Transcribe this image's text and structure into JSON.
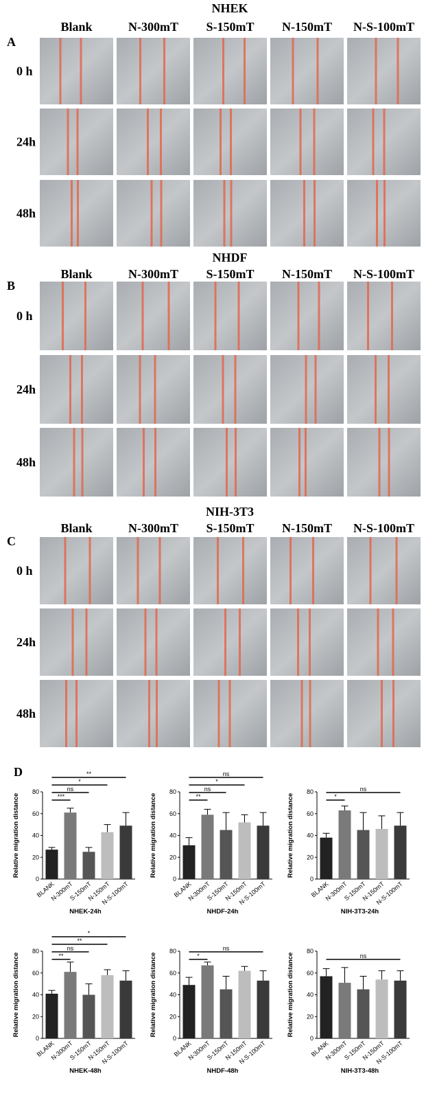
{
  "figure": {
    "letter": "D"
  },
  "panels": [
    {
      "letter": "A",
      "title": "NHEK",
      "columns": [
        "Blank",
        "N-300mT",
        "S-150mT",
        "N-150mT",
        "N-S-100mT"
      ],
      "rows": [
        "0 h",
        "24h",
        "48h"
      ]
    },
    {
      "letter": "B",
      "title": "NHDF",
      "columns": [
        "Blank",
        "N-300mT",
        "S-150mT",
        "N-150mT",
        "N-S-100mT"
      ],
      "rows": [
        "0 h",
        "24h",
        "48h"
      ]
    },
    {
      "letter": "C",
      "title": "NIH-3T3",
      "columns": [
        "Blank",
        "N-300mT",
        "S-150mT",
        "N-150mT",
        "N-S-100mT"
      ],
      "rows": [
        "0 h",
        "24h",
        "48h"
      ]
    }
  ],
  "chart_data": [
    {
      "type": "bar",
      "title": "NHEK-24h",
      "ylabel": "Relative migration distance",
      "categories": [
        "BLANK",
        "N-300mT",
        "S-150mT",
        "N-150mT",
        "N-S-100mT"
      ],
      "values": [
        27,
        61,
        25,
        43,
        49
      ],
      "errors": [
        2,
        4,
        4,
        7,
        12
      ],
      "colors": [
        "#222222",
        "#7a7a7a",
        "#555555",
        "#bdbdbd",
        "#3a3a3a"
      ],
      "ylim": [
        0,
        80
      ],
      "yticks": [
        0,
        20,
        40,
        60,
        80
      ],
      "annotations": [
        {
          "label": "***",
          "from": 0,
          "to": 1
        },
        {
          "label": "ns",
          "from": 0,
          "to": 2
        },
        {
          "label": "*",
          "from": 0,
          "to": 3
        },
        {
          "label": "**",
          "from": 0,
          "to": 4
        }
      ]
    },
    {
      "type": "bar",
      "title": "NHDF-24h",
      "ylabel": "Relative migration distance",
      "categories": [
        "BLANK",
        "N-300mT",
        "S-150mT",
        "N-150mT",
        "N-S-100mT"
      ],
      "values": [
        31,
        59,
        45,
        52,
        49
      ],
      "errors": [
        7,
        5,
        16,
        7,
        12
      ],
      "colors": [
        "#222222",
        "#7a7a7a",
        "#555555",
        "#bdbdbd",
        "#3a3a3a"
      ],
      "ylim": [
        0,
        80
      ],
      "yticks": [
        0,
        20,
        40,
        60,
        80
      ],
      "annotations": [
        {
          "label": "**",
          "from": 0,
          "to": 1
        },
        {
          "label": "ns",
          "from": 0,
          "to": 2
        },
        {
          "label": "*",
          "from": 0,
          "to": 3
        },
        {
          "label": "ns",
          "from": 0,
          "to": 4
        }
      ]
    },
    {
      "type": "bar",
      "title": "NIH-3T3-24h",
      "ylabel": "Relative migration distance",
      "categories": [
        "BLANK",
        "N-300mT",
        "S-150mT",
        "N-150mT",
        "N-S-100mT"
      ],
      "values": [
        38,
        63,
        45,
        46,
        49
      ],
      "errors": [
        4,
        4,
        16,
        12,
        12
      ],
      "colors": [
        "#222222",
        "#7a7a7a",
        "#555555",
        "#bdbdbd",
        "#3a3a3a"
      ],
      "ylim": [
        0,
        80
      ],
      "yticks": [
        0,
        20,
        40,
        60,
        80
      ],
      "annotations": [
        {
          "label": "*",
          "from": 0,
          "to": 1
        },
        {
          "label": "ns",
          "from": 0,
          "to": 4
        }
      ]
    },
    {
      "type": "bar",
      "title": "NHEK-48h",
      "ylabel": "Relative migration distance",
      "categories": [
        "BLANK",
        "N-300mT",
        "S-150mT",
        "N-150mT",
        "N-S-100mT"
      ],
      "values": [
        41,
        61,
        40,
        58,
        53
      ],
      "errors": [
        3,
        9,
        10,
        5,
        9
      ],
      "colors": [
        "#222222",
        "#7a7a7a",
        "#555555",
        "#bdbdbd",
        "#3a3a3a"
      ],
      "ylim": [
        0,
        80
      ],
      "yticks": [
        0,
        20,
        40,
        60,
        80
      ],
      "annotations": [
        {
          "label": "**",
          "from": 0,
          "to": 1
        },
        {
          "label": "ns",
          "from": 0,
          "to": 2
        },
        {
          "label": "**",
          "from": 0,
          "to": 3
        },
        {
          "label": "*",
          "from": 0,
          "to": 4
        }
      ]
    },
    {
      "type": "bar",
      "title": "NHDF-48h",
      "ylabel": "Relative migration distance",
      "categories": [
        "BLANK",
        "N-300mT",
        "S-150mT",
        "N-150mT",
        "N-S-100mT"
      ],
      "values": [
        49,
        67,
        45,
        62,
        53
      ],
      "errors": [
        7,
        3,
        12,
        4,
        9
      ],
      "colors": [
        "#222222",
        "#7a7a7a",
        "#555555",
        "#bdbdbd",
        "#3a3a3a"
      ],
      "ylim": [
        0,
        80
      ],
      "yticks": [
        0,
        20,
        40,
        60,
        80
      ],
      "annotations": [
        {
          "label": "*",
          "from": 0,
          "to": 1
        },
        {
          "label": "ns",
          "from": 0,
          "to": 4
        }
      ]
    },
    {
      "type": "bar",
      "title": "NIH-3T3-48h",
      "ylabel": "Relative migration distance",
      "categories": [
        "BLANK",
        "N-300mT",
        "S-150mT",
        "N-150mT",
        "N-S-100mT"
      ],
      "values": [
        57,
        51,
        45,
        54,
        53
      ],
      "errors": [
        7,
        14,
        12,
        8,
        9
      ],
      "colors": [
        "#222222",
        "#7a7a7a",
        "#555555",
        "#bdbdbd",
        "#3a3a3a"
      ],
      "ylim": [
        0,
        80
      ],
      "yticks": [
        0,
        20,
        40,
        60,
        80
      ],
      "annotations": [
        {
          "label": "ns",
          "from": 0,
          "to": 4
        }
      ]
    }
  ]
}
